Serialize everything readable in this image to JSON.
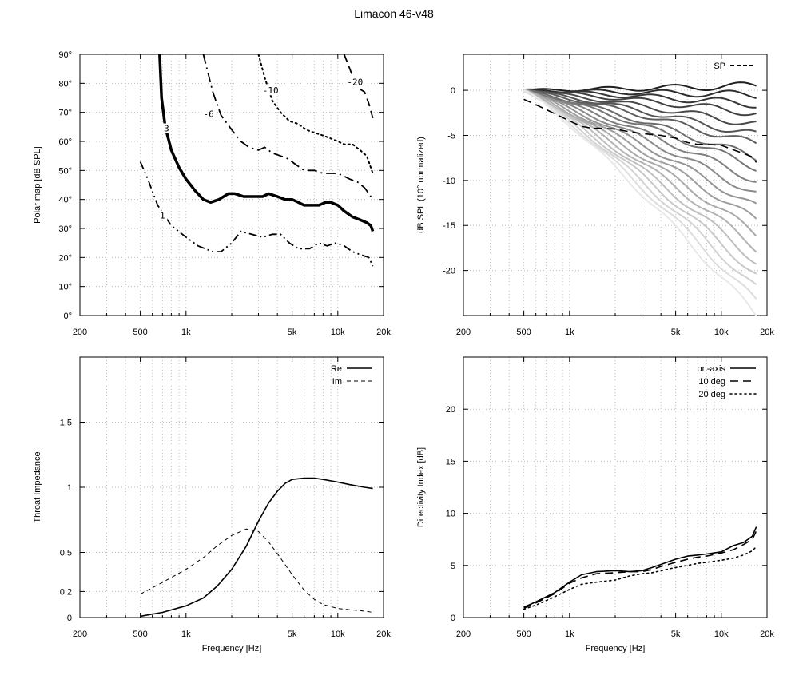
{
  "title": "Limacon 46-v48",
  "chart_data": [
    {
      "id": "polar",
      "type": "line",
      "xlabel": "",
      "ylabel": "Polar map [dB SPL]",
      "xscale": "log",
      "xlim": [
        200,
        20000
      ],
      "ylim": [
        0,
        90
      ],
      "x_ticks": [
        200,
        500,
        1000,
        5000,
        10000,
        20000
      ],
      "x_tick_labels": [
        "200",
        "500",
        "1k",
        "5k",
        "10k",
        "20k"
      ],
      "y_ticks": [
        0,
        10,
        20,
        30,
        40,
        50,
        60,
        70,
        80,
        90
      ],
      "y_tick_labels": [
        "0°",
        "10°",
        "20°",
        "30°",
        "40°",
        "50°",
        "60°",
        "70°",
        "80°",
        "90°"
      ],
      "grid": true,
      "series": [
        {
          "name": "-1",
          "style": "dash-dot-dot",
          "width": 1.8,
          "x": [
            500,
            560,
            650,
            800,
            1000,
            1200,
            1500,
            1700,
            2000,
            2300,
            2700,
            3200,
            3700,
            4200,
            4800,
            5500,
            6500,
            7500,
            8500,
            9700,
            11000,
            12500,
            14000,
            16000,
            17000
          ],
          "y": [
            53,
            47,
            38,
            31,
            27,
            24,
            22,
            22,
            25,
            29,
            28,
            27,
            28,
            28,
            25,
            23,
            23,
            25,
            24,
            25,
            24,
            22,
            21,
            20,
            17
          ]
        },
        {
          "name": "-3",
          "style": "solid",
          "width": 3.5,
          "x": [
            670,
            690,
            730,
            800,
            900,
            1000,
            1150,
            1300,
            1450,
            1650,
            1900,
            2100,
            2400,
            2800,
            3200,
            3500,
            4000,
            4500,
            5000,
            5500,
            6000,
            6800,
            7500,
            8300,
            9000,
            10000,
            11000,
            12500,
            14000,
            15500,
            16500,
            17000
          ],
          "y": [
            90,
            75,
            65,
            57,
            51,
            47,
            43,
            40,
            39,
            40,
            42,
            42,
            41,
            41,
            41,
            42,
            41,
            40,
            40,
            39,
            38,
            38,
            38,
            39,
            39,
            38,
            36,
            34,
            33,
            32,
            31,
            29
          ]
        },
        {
          "name": "-6",
          "style": "dash-dot",
          "width": 1.8,
          "x": [
            1300,
            1500,
            1700,
            2000,
            2300,
            2600,
            3000,
            3300,
            3700,
            4200,
            4700,
            5300,
            6000,
            7000,
            8000,
            9000,
            10000,
            11000,
            12000,
            13500,
            15000,
            16000,
            17000
          ],
          "y": [
            90,
            77,
            69,
            64,
            60,
            58,
            57,
            58,
            56,
            55,
            54,
            52,
            50,
            50,
            49,
            49,
            49,
            48,
            47,
            46,
            44,
            42,
            40
          ]
        },
        {
          "name": "-10",
          "style": "dotted",
          "width": 2,
          "x": [
            3000,
            3300,
            3700,
            4200,
            4800,
            5500,
            6200,
            7000,
            8000,
            9000,
            10000,
            11000,
            12500,
            14000,
            15500,
            17000
          ],
          "y": [
            90,
            82,
            74,
            70,
            67,
            66,
            64,
            63,
            62,
            61,
            60,
            59,
            59,
            57,
            55,
            49
          ]
        },
        {
          "name": "-20",
          "style": "dashed",
          "width": 1.8,
          "x": [
            11000,
            12000,
            13000,
            14000,
            15000,
            16000,
            17000
          ],
          "y": [
            90,
            85,
            80,
            78,
            77,
            73,
            68
          ]
        }
      ],
      "contour_labels": [
        {
          "text": "-1",
          "x": 620,
          "y": 34
        },
        {
          "text": "-3",
          "x": 660,
          "y": 64
        },
        {
          "text": "-6",
          "x": 1300,
          "y": 69
        },
        {
          "text": "-10",
          "x": 3200,
          "y": 77
        },
        {
          "text": "-20",
          "x": 11500,
          "y": 80
        }
      ]
    },
    {
      "id": "spl",
      "type": "line",
      "xlabel": "",
      "ylabel": "dB SPL (10° normalized)",
      "xscale": "log",
      "xlim": [
        200,
        20000
      ],
      "ylim": [
        -25,
        4
      ],
      "x_ticks": [
        200,
        500,
        1000,
        5000,
        10000,
        20000
      ],
      "x_tick_labels": [
        "200",
        "500",
        "1k",
        "5k",
        "10k",
        "20k"
      ],
      "y_ticks": [
        -20,
        -15,
        -10,
        -5,
        0
      ],
      "y_tick_labels": [
        "-20",
        "-15",
        "-10",
        "-5",
        "0"
      ],
      "grid": true,
      "legend": {
        "position": "top-right",
        "entries": [
          {
            "name": "SP",
            "style": "dashed"
          }
        ]
      },
      "family": {
        "description_count": 20,
        "x_start": 500,
        "x_end": 17000,
        "color_dark": "#202020",
        "color_light": "#e8e8e8",
        "end_values": [
          0.5,
          -0.5,
          -1.5,
          -2.5,
          -3.8,
          -5.0,
          -6.0,
          -7.5,
          -8.5,
          -10,
          -11.5,
          -13,
          -14.5,
          -16,
          -17.5,
          -19,
          -20.5,
          -22,
          -23.5,
          -25
        ]
      },
      "series": [
        {
          "name": "SP",
          "style": "dashed",
          "x": [
            500,
            600,
            800,
            1000,
            1200,
            1400,
            1600,
            2000,
            2500,
            3000,
            4000,
            5000,
            6000,
            7000,
            8000,
            10000,
            12000,
            14000,
            16000,
            17000
          ],
          "y": [
            -1,
            -1.6,
            -2.6,
            -3.4,
            -4.0,
            -4.2,
            -4.2,
            -4.3,
            -4.6,
            -4.8,
            -5.0,
            -5.3,
            -5.8,
            -6.0,
            -6.0,
            -6.1,
            -6.6,
            -7.0,
            -7.4,
            -8.0
          ]
        }
      ]
    },
    {
      "id": "impedance",
      "type": "line",
      "xlabel": "Frequency [Hz]",
      "ylabel": "Throat Impedance",
      "xscale": "log",
      "xlim": [
        200,
        20000
      ],
      "ylim": [
        0,
        2
      ],
      "x_ticks": [
        200,
        500,
        1000,
        5000,
        10000,
        20000
      ],
      "x_tick_labels": [
        "200",
        "500",
        "1k",
        "5k",
        "10k",
        "20k"
      ],
      "y_ticks": [
        0,
        0.2,
        0.5,
        1,
        1.5
      ],
      "y_tick_labels": [
        "0",
        "0.2",
        "0.5",
        "1",
        "1.5"
      ],
      "grid": true,
      "legend": {
        "position": "top-right",
        "entries": [
          {
            "name": "Re",
            "style": "solid"
          },
          {
            "name": "Im",
            "style": "dashed"
          }
        ]
      },
      "series": [
        {
          "name": "Re",
          "style": "solid",
          "x": [
            500,
            700,
            1000,
            1300,
            1600,
            2000,
            2500,
            3000,
            3500,
            4000,
            4500,
            5000,
            6000,
            7000,
            8000,
            10000,
            12000,
            15000,
            17000
          ],
          "y": [
            0.01,
            0.04,
            0.09,
            0.15,
            0.24,
            0.37,
            0.55,
            0.74,
            0.88,
            0.97,
            1.03,
            1.06,
            1.07,
            1.07,
            1.06,
            1.04,
            1.02,
            1.0,
            0.99
          ]
        },
        {
          "name": "Im",
          "style": "dashed",
          "x": [
            500,
            700,
            1000,
            1300,
            1600,
            2000,
            2500,
            3000,
            3500,
            4000,
            5000,
            6000,
            7000,
            8000,
            10000,
            12000,
            15000,
            17000
          ],
          "y": [
            0.18,
            0.27,
            0.37,
            0.46,
            0.55,
            0.63,
            0.68,
            0.66,
            0.58,
            0.49,
            0.33,
            0.21,
            0.14,
            0.1,
            0.07,
            0.06,
            0.05,
            0.04
          ]
        }
      ]
    },
    {
      "id": "di",
      "type": "line",
      "xlabel": "Frequency [Hz]",
      "ylabel": "Directivity Index [dB]",
      "xscale": "log",
      "xlim": [
        200,
        20000
      ],
      "ylim": [
        0,
        25
      ],
      "x_ticks": [
        200,
        500,
        1000,
        5000,
        10000,
        20000
      ],
      "x_tick_labels": [
        "200",
        "500",
        "1k",
        "5k",
        "10k",
        "20k"
      ],
      "y_ticks": [
        0,
        5,
        10,
        15,
        20
      ],
      "y_tick_labels": [
        "0",
        "5",
        "10",
        "15",
        "20"
      ],
      "grid": true,
      "legend": {
        "position": "top-right",
        "entries": [
          {
            "name": "on-axis",
            "style": "solid"
          },
          {
            "name": "10 deg",
            "style": "dashed"
          },
          {
            "name": "20 deg",
            "style": "dotted"
          }
        ]
      },
      "series": [
        {
          "name": "on-axis",
          "style": "solid",
          "x": [
            500,
            600,
            800,
            1000,
            1200,
            1500,
            2000,
            2500,
            3000,
            3500,
            4000,
            5000,
            6000,
            7000,
            8000,
            10000,
            12000,
            14000,
            16000,
            17000
          ],
          "y": [
            1.0,
            1.5,
            2.4,
            3.4,
            4.1,
            4.4,
            4.5,
            4.4,
            4.5,
            4.8,
            5.1,
            5.6,
            5.9,
            6.0,
            6.1,
            6.3,
            6.9,
            7.2,
            7.8,
            8.7
          ]
        },
        {
          "name": "10 deg",
          "style": "dashed",
          "x": [
            500,
            600,
            800,
            1000,
            1200,
            1500,
            2000,
            2500,
            3000,
            3500,
            4000,
            5000,
            6000,
            7000,
            8000,
            10000,
            12000,
            14000,
            16000,
            17000
          ],
          "y": [
            0.9,
            1.4,
            2.3,
            3.3,
            3.8,
            4.2,
            4.3,
            4.4,
            4.4,
            4.6,
            4.9,
            5.3,
            5.6,
            5.8,
            5.9,
            6.2,
            6.5,
            7.0,
            7.5,
            8.3
          ]
        },
        {
          "name": "20 deg",
          "style": "dotted",
          "x": [
            500,
            600,
            800,
            1000,
            1200,
            1500,
            2000,
            2500,
            3000,
            3500,
            4000,
            5000,
            6000,
            7000,
            8000,
            10000,
            12000,
            14000,
            16000,
            17000
          ],
          "y": [
            0.8,
            1.2,
            2.0,
            2.7,
            3.2,
            3.4,
            3.6,
            4.0,
            4.2,
            4.3,
            4.5,
            4.8,
            5.0,
            5.2,
            5.3,
            5.5,
            5.7,
            6.0,
            6.4,
            6.8
          ]
        }
      ]
    }
  ]
}
